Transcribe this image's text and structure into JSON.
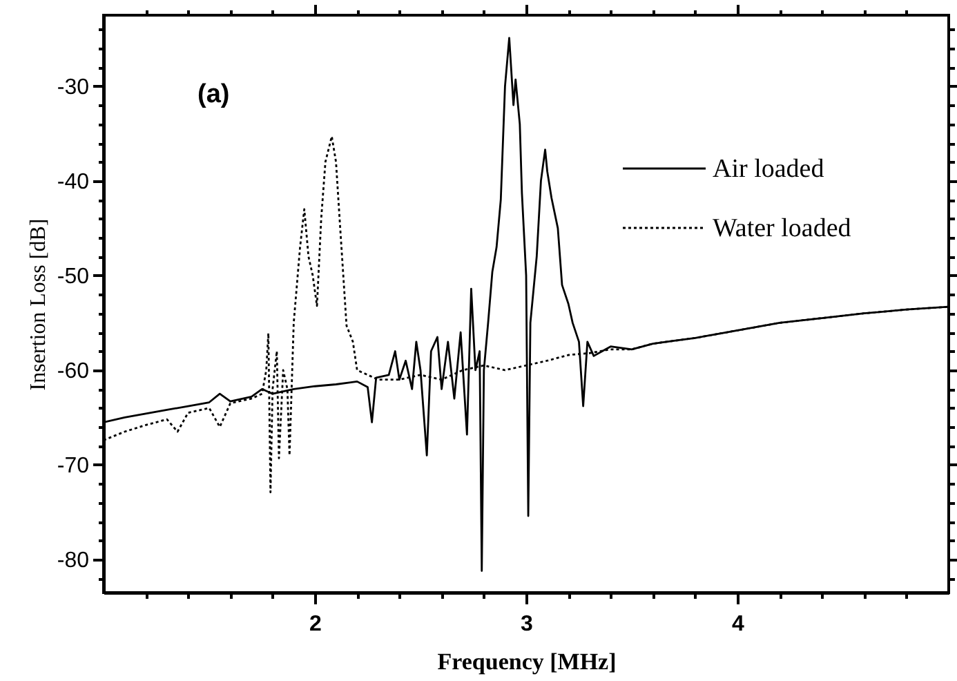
{
  "chart_data": {
    "type": "line",
    "xlabel": "Frequency [MHz]",
    "ylabel": "Insertion Loss [dB]",
    "annotations": [
      "(a)"
    ],
    "xlim": [
      1,
      5
    ],
    "ylim": [
      -83.5,
      -22.5
    ],
    "xticks": [
      {
        "value": 1.2,
        "label": null
      },
      {
        "value": 1.4,
        "label": null
      },
      {
        "value": 1.6,
        "label": null
      },
      {
        "value": 1.8,
        "label": null
      },
      2,
      {
        "value": 2.2,
        "label": null
      },
      {
        "value": 2.4,
        "label": null
      },
      {
        "value": 2.6,
        "label": null
      },
      {
        "value": 2.8,
        "label": null
      },
      3,
      {
        "value": 3.2,
        "label": null
      },
      {
        "value": 3.4,
        "label": null
      },
      {
        "value": 3.6,
        "label": null
      },
      {
        "value": 3.8,
        "label": null
      },
      4,
      {
        "value": 4.2,
        "label": null
      },
      {
        "value": 4.4,
        "label": null
      },
      {
        "value": 4.6,
        "label": null
      },
      {
        "value": 4.8,
        "label": null
      }
    ],
    "yticks": [
      {
        "value": -82,
        "label": null
      },
      -80,
      {
        "value": -78,
        "label": null
      },
      {
        "value": -76,
        "label": null
      },
      {
        "value": -74,
        "label": null
      },
      {
        "value": -72,
        "label": null
      },
      -70,
      {
        "value": -68,
        "label": null
      },
      {
        "value": -66,
        "label": null
      },
      {
        "value": -64,
        "label": null
      },
      {
        "value": -62,
        "label": null
      },
      -60,
      {
        "value": -58,
        "label": null
      },
      {
        "value": -56,
        "label": null
      },
      {
        "value": -54,
        "label": null
      },
      {
        "value": -52,
        "label": null
      },
      -50,
      {
        "value": -48,
        "label": null
      },
      {
        "value": -46,
        "label": null
      },
      {
        "value": -44,
        "label": null
      },
      {
        "value": -42,
        "label": null
      },
      -40,
      {
        "value": -38,
        "label": null
      },
      {
        "value": -36,
        "label": null
      },
      {
        "value": -34,
        "label": null
      },
      {
        "value": -32,
        "label": null
      },
      -30,
      {
        "value": -28,
        "label": null
      },
      {
        "value": -26,
        "label": null
      },
      {
        "value": -24,
        "label": null
      }
    ],
    "grid": false,
    "legend": "top right",
    "marker": "none",
    "series": [
      {
        "name": "Air loaded",
        "color": "#000000",
        "line_style": "solid",
        "x": [
          1.0,
          1.1,
          1.2,
          1.3,
          1.4,
          1.5,
          1.55,
          1.6,
          1.7,
          1.75,
          1.8,
          1.9,
          2.0,
          2.1,
          2.2,
          2.25,
          2.27,
          2.29,
          2.35,
          2.38,
          2.4,
          2.43,
          2.46,
          2.48,
          2.5,
          2.53,
          2.55,
          2.58,
          2.6,
          2.63,
          2.66,
          2.69,
          2.72,
          2.74,
          2.76,
          2.78,
          2.79,
          2.8,
          2.82,
          2.84,
          2.86,
          2.88,
          2.9,
          2.92,
          2.94,
          2.95,
          2.97,
          2.98,
          3.0,
          3.01,
          3.02,
          3.05,
          3.07,
          3.09,
          3.1,
          3.12,
          3.15,
          3.17,
          3.2,
          3.22,
          3.25,
          3.27,
          3.29,
          3.32,
          3.36,
          3.4,
          3.5,
          3.6,
          3.7,
          3.8,
          3.9,
          4.0,
          4.2,
          4.4,
          4.6,
          4.8,
          5.0
        ],
        "values": [
          -65.5,
          -65.0,
          -64.6,
          -64.2,
          -63.8,
          -63.4,
          -62.5,
          -63.3,
          -62.8,
          -62.0,
          -62.5,
          -62.0,
          -61.7,
          -61.5,
          -61.2,
          -61.8,
          -65.5,
          -60.8,
          -60.5,
          -58,
          -61,
          -59,
          -62,
          -57,
          -60,
          -69,
          -58,
          -56.5,
          -62,
          -57,
          -63,
          -56,
          -66.8,
          -51.4,
          -60,
          -58,
          -81.2,
          -60,
          -55,
          -49.6,
          -47,
          -42,
          -30,
          -24.9,
          -32,
          -29.3,
          -34,
          -41.3,
          -50,
          -75.4,
          -55,
          -48,
          -40,
          -36.7,
          -39,
          -41.8,
          -45,
          -51,
          -53,
          -55,
          -57,
          -63.8,
          -57,
          -58.5,
          -58,
          -57.5,
          -57.8,
          -57.2,
          -56.9,
          -56.6,
          -56.2,
          -55.8,
          -55.0,
          -54.5,
          -54.0,
          -53.6,
          -53.3
        ]
      },
      {
        "name": "Water loaded",
        "color": "#000000",
        "line_style": "dotted",
        "x": [
          1.0,
          1.1,
          1.2,
          1.3,
          1.35,
          1.4,
          1.5,
          1.55,
          1.6,
          1.7,
          1.75,
          1.77,
          1.78,
          1.79,
          1.8,
          1.82,
          1.83,
          1.85,
          1.87,
          1.88,
          1.9,
          1.93,
          1.95,
          1.97,
          1.99,
          2.01,
          2.03,
          2.05,
          2.08,
          2.1,
          2.12,
          2.15,
          2.18,
          2.2,
          2.3,
          2.4,
          2.5,
          2.6,
          2.7,
          2.8,
          2.9,
          3.0,
          3.1,
          3.2,
          3.3,
          3.4,
          3.5,
          3.6,
          3.7,
          3.8,
          3.9,
          4.0,
          4.2,
          4.4,
          4.6,
          4.8,
          5.0
        ],
        "values": [
          -67.4,
          -66.5,
          -65.8,
          -65.2,
          -66.5,
          -64.5,
          -64.0,
          -66,
          -63.5,
          -63.0,
          -62.5,
          -60,
          -56.1,
          -72.9,
          -62,
          -58,
          -69.3,
          -60,
          -62,
          -69,
          -55,
          -47,
          -43,
          -48,
          -50,
          -53.2,
          -44,
          -38,
          -35.3,
          -38,
          -45,
          -55.3,
          -57,
          -60,
          -61,
          -61,
          -60.5,
          -61,
          -60,
          -59.5,
          -60.0,
          -59.5,
          -59,
          -58.4,
          -58.2,
          -57.8,
          -57.8,
          -57.2,
          -56.9,
          -56.6,
          -56.2,
          -55.8,
          -55.0,
          -54.5,
          -54.0,
          -53.6,
          -53.3
        ]
      }
    ]
  }
}
